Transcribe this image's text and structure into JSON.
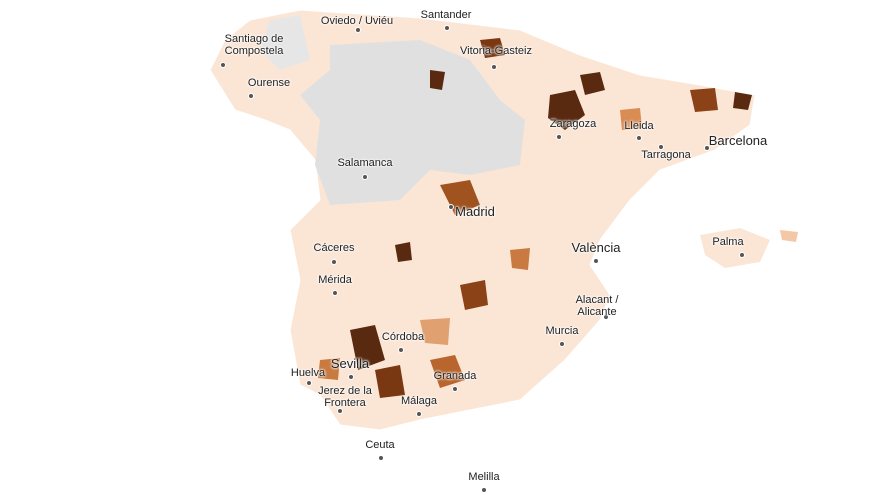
{
  "cities": [
    "Oviedo / Uviéu",
    "Santander",
    "Santiago de Compostela",
    "Vitoria-Gasteiz",
    "Ourense",
    "Zaragoza",
    "Lleida",
    "Barcelona",
    "Tarragona",
    "Salamanca",
    "Madrid",
    "Cáceres",
    "València",
    "Palma",
    "Mérida",
    "Alacant / Alicante",
    "Murcia",
    "Córdoba",
    "Sevilla",
    "Huelva",
    "Granada",
    "Jerez de la Frontera",
    "Málaga",
    "Ceuta",
    "Melilla"
  ]
}
